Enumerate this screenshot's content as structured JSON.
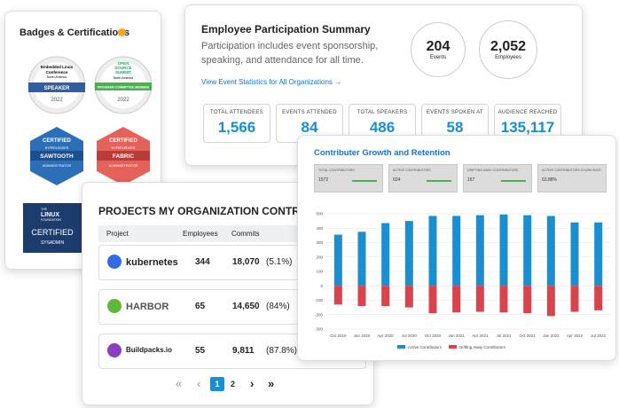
{
  "badges": {
    "title": "Badges & Certifications",
    "items": [
      {
        "lines": [
          "Embedded Linux",
          "Conference",
          "North America"
        ],
        "ribbon": "SPEAKER",
        "year": "2022"
      },
      {
        "lines": [
          "OPEN",
          "SOURCE",
          "SUMMIT",
          "North America"
        ],
        "ribbon": "PROGRAM COMMITTEE MEMBER",
        "year": "2022"
      },
      {
        "top": "CERTIFIED",
        "brand": "HYPERLEDGER",
        "name": "SAWTOOTH",
        "role": "ADMINISTRATOR"
      },
      {
        "top": "CERTIFIED",
        "brand": "HYPERLEDGER",
        "name": "FABRIC",
        "role": "ADMINISTRATOR"
      },
      {
        "lines": [
          "THE",
          "LINUX",
          "FOUNDATION"
        ],
        "name": "CERTIFIED",
        "role": "SYSADMIN"
      }
    ]
  },
  "summary": {
    "title": "Employee Participation Summary",
    "description": "Participation includes event sponsorship, speaking, and attendance for all time.",
    "link": "View Event Statistics for All Organizations",
    "link_arrow": "→",
    "circles": [
      {
        "value": "204",
        "label": "Events"
      },
      {
        "value": "2,052",
        "label": "Employees"
      }
    ],
    "stats": [
      {
        "label": "TOTAL ATTENDEES",
        "value": "1,566"
      },
      {
        "label": "EVENTS ATTENDED",
        "value": "84"
      },
      {
        "label": "TOTAL SPEAKERS",
        "value": "486"
      },
      {
        "label": "EVENTS SPOKEN AT",
        "value": "58"
      },
      {
        "label": "AUDIENCE REACHED",
        "value": "135,117"
      }
    ]
  },
  "projects": {
    "title": "PROJECTS MY ORGANIZATION CONTRIBUTES",
    "columns": [
      "Project",
      "Employees",
      "Commits"
    ],
    "rows": [
      {
        "name": "kubernetes",
        "employees": "344",
        "commits": "18,070",
        "share": "(5.1%)"
      },
      {
        "name": "HARBOR",
        "employees": "65",
        "commits": "14,650",
        "share": "(84%)"
      },
      {
        "name": "Buildpacks.io",
        "employees": "55",
        "commits": "9,811",
        "share": "(87.8%)"
      }
    ],
    "pagination": {
      "first": "«",
      "prev": "‹",
      "pages": [
        "1",
        "2"
      ],
      "next": "›",
      "last": "»"
    }
  },
  "growth": {
    "title": "Contributer Growth and Retention",
    "tiles": [
      {
        "label": "TOTAL CONTRIBUTORS",
        "value": "1572"
      },
      {
        "label": "ACTIVE CONTRIBUTORS",
        "value": "624"
      },
      {
        "label": "DRIFTING AWAY CONTRIBUTORS",
        "value": "167"
      },
      {
        "label": "ACTIVE CONTRIBUTORS CHURN RATE",
        "value": "63.88%"
      }
    ],
    "chart": {
      "type": "bar",
      "categories": [
        "Oct 2019",
        "Jan 2020",
        "Apr 2020",
        "Jul 2020",
        "Oct 2020",
        "Jan 2021",
        "Apr 2021",
        "Jul 2021",
        "Oct 2021",
        "Jan 2022",
        "Apr 2022",
        "Jul 2022"
      ],
      "series": [
        {
          "name": "Active Contributors",
          "color": "#1a8fd0",
          "values": [
            355,
            375,
            435,
            450,
            485,
            485,
            490,
            495,
            490,
            485,
            440,
            440
          ]
        },
        {
          "name": "Drifting Away Contributors",
          "color": "#d9434b",
          "values": [
            -130,
            -140,
            -140,
            -150,
            -190,
            -185,
            -180,
            -185,
            -190,
            -210,
            -180,
            -170
          ]
        }
      ],
      "ylim": [
        -300,
        500
      ],
      "yticks": [
        -300,
        -200,
        -100,
        0,
        100,
        200,
        300,
        400,
        500
      ],
      "grid": true,
      "legend": "bottom"
    }
  }
}
